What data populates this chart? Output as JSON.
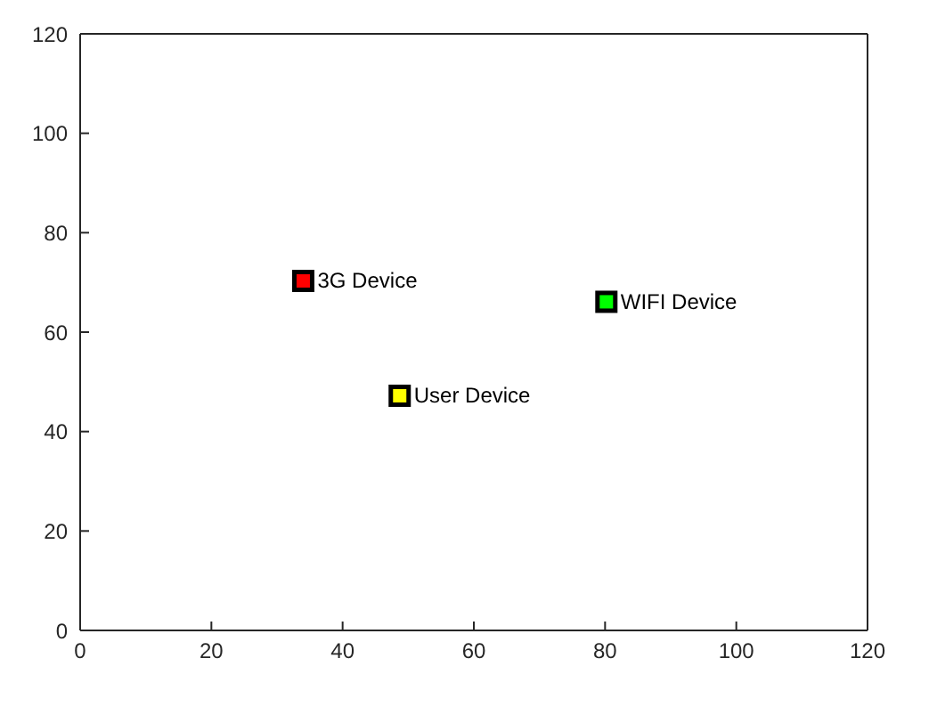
{
  "chart_data": {
    "type": "scatter",
    "marker": "square",
    "legend": false,
    "grid": false,
    "xlim": [
      0,
      120
    ],
    "xticks": [
      0,
      20,
      40,
      60,
      80,
      100,
      120
    ],
    "ylim": [
      0,
      120
    ],
    "yticks": [
      0,
      20,
      40,
      60,
      80,
      100,
      120
    ],
    "series": [
      {
        "name": "3G Device",
        "color": "#ff0000",
        "x": [
          34
        ],
        "values": [
          70.3
        ]
      },
      {
        "name": "User Device",
        "color": "#ffff00",
        "x": [
          48.7
        ],
        "values": [
          47.2
        ]
      },
      {
        "name": "WIFI Device",
        "color": "#00ff00",
        "x": [
          80.2
        ],
        "values": [
          66.1
        ]
      }
    ]
  }
}
